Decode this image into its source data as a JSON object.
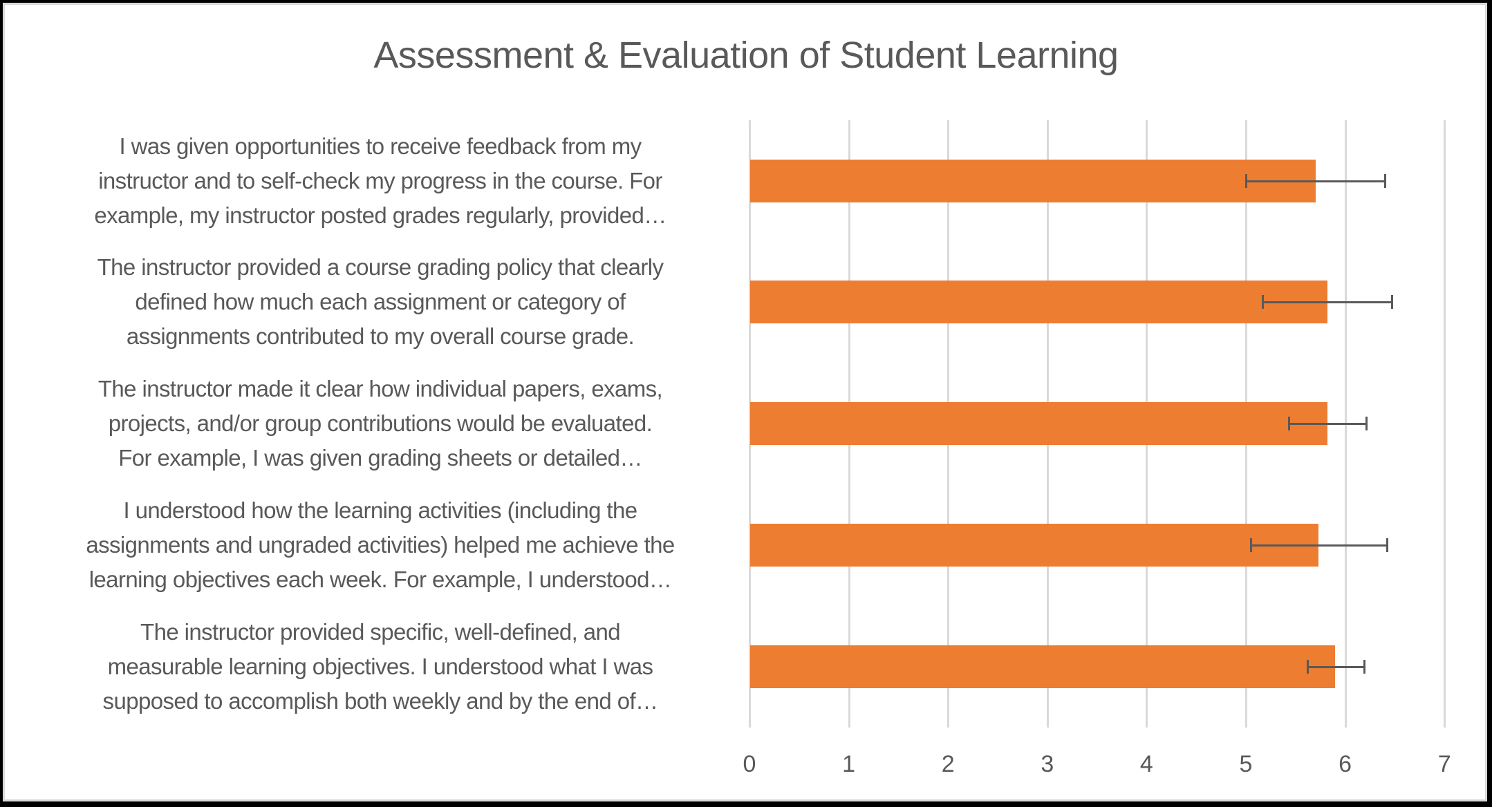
{
  "chart_data": {
    "type": "bar",
    "orientation": "horizontal",
    "title": "Assessment & Evaluation of Student Learning",
    "xlabel": "",
    "ylabel": "",
    "xlim": [
      0,
      7
    ],
    "x_ticks": [
      "0",
      "1",
      "2",
      "3",
      "4",
      "5",
      "6",
      "7"
    ],
    "grid": true,
    "legend": null,
    "bar_color": "#ed7d31",
    "error_bar_color": "#595959",
    "categories": [
      "I was given opportunities to receive feedback from my instructor and to self-check my progress in the course. For example, my instructor posted grades regularly, provided…",
      "The instructor provided a course grading policy that clearly defined how much each assignment or category of assignments contributed to my overall course grade.",
      "The instructor made it clear how individual papers, exams, projects, and/or group contributions would be evaluated. For example, I was given grading sheets or detailed…",
      "I understood how the learning activities (including the assignments and ungraded activities) helped me achieve the learning objectives each week. For example, I understood…",
      "The instructor provided specific, well-defined, and measurable learning objectives. I understood what I was supposed to accomplish both weekly and by the end of…"
    ],
    "values": [
      5.7,
      5.82,
      5.82,
      5.73,
      5.9
    ],
    "error_low": [
      5.0,
      5.17,
      5.43,
      5.05,
      5.62
    ],
    "error_high": [
      6.4,
      6.47,
      6.21,
      6.42,
      6.19
    ]
  },
  "chart": {
    "title": "Assessment & Evaluation of Student Learning",
    "ticks": [
      "0",
      "1",
      "2",
      "3",
      "4",
      "5",
      "6",
      "7"
    ],
    "rows": [
      {
        "lines": [
          "I was given opportunities to receive feedback from my",
          "instructor and to self-check my progress in the course. For",
          "example, my instructor posted grades regularly, provided…"
        ],
        "value": 5.7,
        "err_low": 5.0,
        "err_high": 6.4
      },
      {
        "lines": [
          "The instructor provided a course grading policy that clearly",
          "defined how much each assignment or category of",
          "assignments contributed to my overall course grade."
        ],
        "value": 5.82,
        "err_low": 5.17,
        "err_high": 6.47
      },
      {
        "lines": [
          "The instructor made it clear how individual papers, exams,",
          "projects, and/or group contributions would be evaluated.",
          "For example, I was given grading sheets or detailed…"
        ],
        "value": 5.82,
        "err_low": 5.43,
        "err_high": 6.21
      },
      {
        "lines": [
          "I understood how the learning activities (including the",
          "assignments and ungraded activities) helped me achieve the",
          "learning objectives each week. For example, I understood…"
        ],
        "value": 5.73,
        "err_low": 5.05,
        "err_high": 6.42
      },
      {
        "lines": [
          "The instructor provided specific, well-defined, and",
          "measurable learning objectives. I understood what I was",
          "supposed to accomplish both weekly and by the end of…"
        ],
        "value": 5.9,
        "err_low": 5.62,
        "err_high": 6.19
      }
    ]
  }
}
